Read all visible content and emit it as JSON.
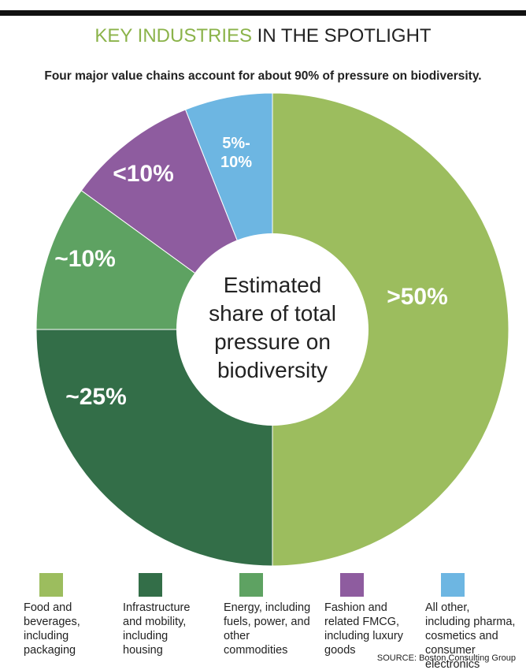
{
  "chart_data": {
    "type": "pie",
    "title": [
      "KEY INDUSTRIES",
      "IN THE SPOTLIGHT"
    ],
    "subtitle": "Four major value chains account for about 90% of pressure on biodiversity.",
    "center_label": "Estimated share of total pressure on biodiversity",
    "categories": [
      "Food and beverages, including packaging",
      "Infrastructure and mobility, including housing",
      "Energy, including fuels, power, and other commodities",
      "Fashion and related FMCG, including luxury goods",
      "All other, including pharma, cosmetics and consumer electronics"
    ],
    "values": [
      50,
      25,
      10,
      9,
      6
    ],
    "value_labels": [
      ">50%",
      "~25%",
      "~10%",
      "<10%",
      "5%-10%"
    ],
    "colors": [
      "#9cbd5e",
      "#336e48",
      "#5ea262",
      "#8e5c9f",
      "#6db6e2"
    ],
    "source": "SOURCE: Boston Consulting Group"
  }
}
